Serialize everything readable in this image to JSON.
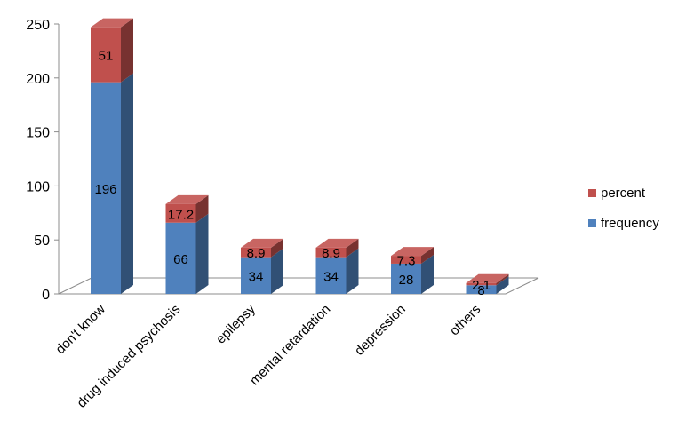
{
  "chart_data": {
    "type": "bar",
    "stacked": true,
    "style": "3d",
    "categories": [
      "don't know",
      "drug induced psychosis",
      "epilepsy",
      "mental retardation",
      "depression",
      "others"
    ],
    "series": [
      {
        "name": "frequency",
        "values": [
          196,
          66,
          34,
          34,
          28,
          8
        ],
        "color": "#4F81BD"
      },
      {
        "name": "percent",
        "values": [
          51,
          17.2,
          8.9,
          8.9,
          7.3,
          2.1
        ],
        "color": "#C0504D"
      }
    ],
    "data_labels": {
      "frequency": [
        "196",
        "66",
        "34",
        "34",
        "28",
        "8"
      ],
      "percent": [
        "51",
        "17.2",
        "8.9",
        "8.9",
        "7.3",
        "2.1"
      ]
    },
    "ylim": [
      0,
      250
    ],
    "yticks": [
      0,
      50,
      100,
      150,
      200,
      250
    ],
    "ytick_labels": [
      "0",
      "50",
      "100",
      "150",
      "200",
      "250"
    ],
    "legend": {
      "position": "right",
      "order": [
        "percent",
        "frequency"
      ]
    },
    "grid": false
  }
}
